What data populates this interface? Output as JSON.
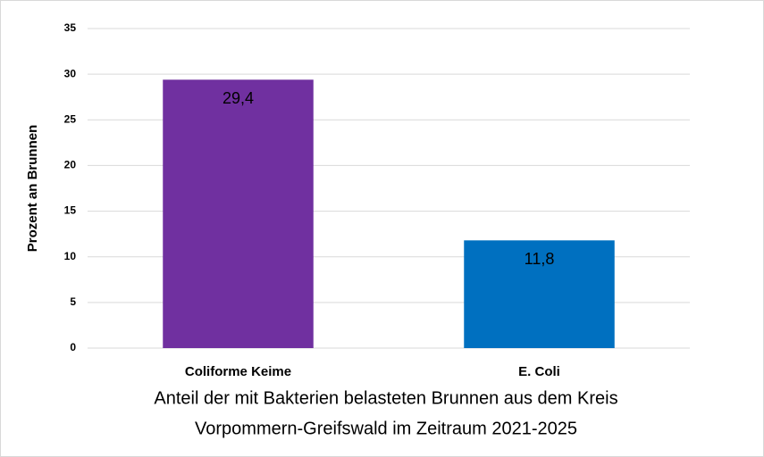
{
  "chart_data": {
    "type": "bar",
    "categories": [
      "Coliforme Keime",
      "E. Coli"
    ],
    "values": [
      29.4,
      11.8
    ],
    "value_labels": [
      "29,4",
      "11,8"
    ],
    "colors": [
      "#7030a0",
      "#0070c0"
    ],
    "ylabel": "Prozent an Brunnen",
    "xlabel": [
      "Anteil der mit Bakterien belasteten Brunnen aus dem Kreis",
      "Vorpommern-Greifswald im Zeitraum 2021-2025"
    ],
    "ylim": [
      0,
      35
    ],
    "yticks": [
      0,
      5,
      10,
      15,
      20,
      25,
      30,
      35
    ],
    "grid": true
  }
}
